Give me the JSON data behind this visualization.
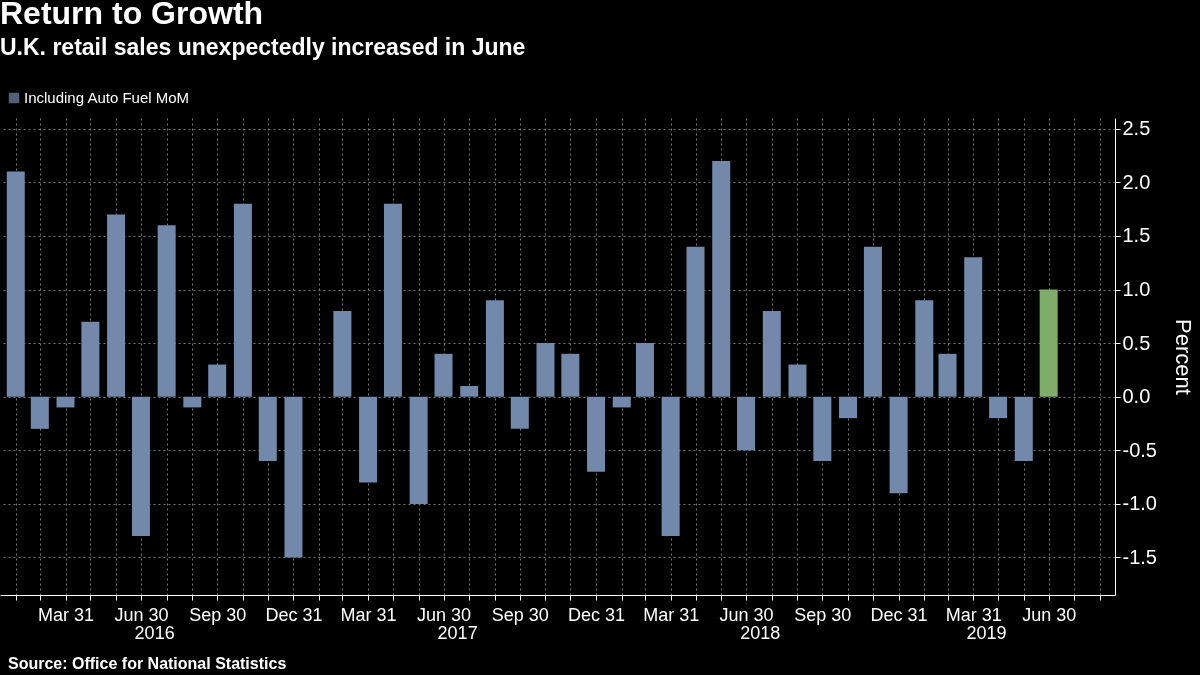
{
  "chart_data": {
    "type": "bar",
    "title": "Return to Growth",
    "subtitle": "U.K. retail sales unexpectedly increased in June",
    "ylabel": "Percent",
    "x": [
      "2016-01-31",
      "2016-02-29",
      "2016-03-31",
      "2016-04-30",
      "2016-05-31",
      "2016-06-30",
      "2016-07-31",
      "2016-08-31",
      "2016-09-30",
      "2016-10-31",
      "2016-11-30",
      "2016-12-31",
      "2017-01-31",
      "2017-02-28",
      "2017-03-31",
      "2017-04-30",
      "2017-05-31",
      "2017-06-30",
      "2017-07-31",
      "2017-08-31",
      "2017-09-30",
      "2017-10-31",
      "2017-11-30",
      "2017-12-31",
      "2018-01-31",
      "2018-02-28",
      "2018-03-31",
      "2018-04-30",
      "2018-05-31",
      "2018-06-30",
      "2018-07-31",
      "2018-08-31",
      "2018-09-30",
      "2018-10-31",
      "2018-11-30",
      "2018-12-31",
      "2019-01-31",
      "2019-02-28",
      "2019-03-31",
      "2019-04-30",
      "2019-05-31",
      "2019-06-30"
    ],
    "series": [
      {
        "name": "Including Auto Fuel MoM",
        "color": "#7289ab",
        "colors": [
          "#7289ab",
          "#7289ab",
          "#7289ab",
          "#7289ab",
          "#7289ab",
          "#7289ab",
          "#7289ab",
          "#7289ab",
          "#7289ab",
          "#7289ab",
          "#7289ab",
          "#7289ab",
          "#7289ab",
          "#7289ab",
          "#7289ab",
          "#7289ab",
          "#7289ab",
          "#7289ab",
          "#7289ab",
          "#7289ab",
          "#7289ab",
          "#7289ab",
          "#7289ab",
          "#7289ab",
          "#7289ab",
          "#7289ab",
          "#7289ab",
          "#7289ab",
          "#7289ab",
          "#7289ab",
          "#7289ab",
          "#7289ab",
          "#7289ab",
          "#7289ab",
          "#7289ab",
          "#7289ab",
          "#7289ab",
          "#7289ab",
          "#7289ab",
          "#7289ab",
          "#7289ab",
          "#7fae6c"
        ],
        "values": [
          2.1,
          -0.3,
          -0.1,
          0.7,
          1.7,
          -1.3,
          1.6,
          -0.1,
          0.3,
          1.8,
          -0.6,
          -1.5,
          0.0,
          0.8,
          -0.8,
          1.8,
          -1.0,
          0.4,
          0.1,
          0.9,
          -0.3,
          0.5,
          0.4,
          -0.7,
          -0.1,
          0.5,
          -1.3,
          1.4,
          2.2,
          -0.5,
          0.8,
          0.3,
          -0.6,
          -0.2,
          1.4,
          -0.9,
          0.9,
          0.4,
          1.3,
          -0.2,
          -0.6,
          1.0
        ]
      }
    ],
    "xlim": [
      "2016-01-18",
      "2019-09-12"
    ],
    "xticks": [
      {
        "value": "2016-01-31",
        "label": null
      },
      {
        "value": "2016-02-29",
        "label": null
      },
      {
        "value": "2016-03-31",
        "label": "Mar 31"
      },
      {
        "value": "2016-04-30",
        "label": null
      },
      {
        "value": "2016-05-31",
        "label": null
      },
      {
        "value": "2016-06-30",
        "label": "Jun 30"
      },
      {
        "value": "2016-07-31",
        "label": null
      },
      {
        "value": "2016-08-31",
        "label": null
      },
      {
        "value": "2016-09-30",
        "label": "Sep 30"
      },
      {
        "value": "2016-10-31",
        "label": null
      },
      {
        "value": "2016-11-30",
        "label": null
      },
      {
        "value": "2016-12-31",
        "label": "Dec 31"
      },
      {
        "value": "2017-01-31",
        "label": null
      },
      {
        "value": "2017-02-28",
        "label": null
      },
      {
        "value": "2017-03-31",
        "label": "Mar 31"
      },
      {
        "value": "2017-04-30",
        "label": null
      },
      {
        "value": "2017-05-31",
        "label": null
      },
      {
        "value": "2017-06-30",
        "label": "Jun 30"
      },
      {
        "value": "2017-07-31",
        "label": null
      },
      {
        "value": "2017-08-31",
        "label": null
      },
      {
        "value": "2017-09-30",
        "label": "Sep 30"
      },
      {
        "value": "2017-10-31",
        "label": null
      },
      {
        "value": "2017-11-30",
        "label": null
      },
      {
        "value": "2017-12-31",
        "label": "Dec 31"
      },
      {
        "value": "2018-01-31",
        "label": null
      },
      {
        "value": "2018-02-28",
        "label": null
      },
      {
        "value": "2018-03-31",
        "label": "Mar 31"
      },
      {
        "value": "2018-04-30",
        "label": null
      },
      {
        "value": "2018-05-31",
        "label": null
      },
      {
        "value": "2018-06-30",
        "label": "Jun 30"
      },
      {
        "value": "2018-07-31",
        "label": null
      },
      {
        "value": "2018-08-31",
        "label": null
      },
      {
        "value": "2018-09-30",
        "label": "Sep 30"
      },
      {
        "value": "2018-10-31",
        "label": null
      },
      {
        "value": "2018-11-30",
        "label": null
      },
      {
        "value": "2018-12-31",
        "label": "Dec 31"
      },
      {
        "value": "2019-01-31",
        "label": null
      },
      {
        "value": "2019-02-28",
        "label": null
      },
      {
        "value": "2019-03-31",
        "label": "Mar 31"
      },
      {
        "value": "2019-04-30",
        "label": null
      },
      {
        "value": "2019-05-31",
        "label": null
      },
      {
        "value": "2019-06-30",
        "label": "Jun 30"
      },
      {
        "value": "2019-07-31",
        "label": null
      },
      {
        "value": "2019-08-31",
        "label": null
      }
    ],
    "ylim": [
      -1.85,
      2.6
    ],
    "yticks": [
      {
        "value": -1.5,
        "label": "-1.5"
      },
      {
        "value": -1,
        "label": "-1.0"
      },
      {
        "value": -0.5,
        "label": "-0.5"
      },
      {
        "value": 0,
        "label": "0.0"
      },
      {
        "value": 0.5,
        "label": "0.5"
      },
      {
        "value": 1,
        "label": "1.0"
      },
      {
        "value": 1.5,
        "label": "1.5"
      },
      {
        "value": 2,
        "label": "2.0"
      },
      {
        "value": 2.5,
        "label": "2.5"
      }
    ],
    "grid": true,
    "legend": "top left",
    "annotations": [
      "2016",
      "2017",
      "2018",
      "2019",
      "Source: Office for National Statistics"
    ]
  }
}
